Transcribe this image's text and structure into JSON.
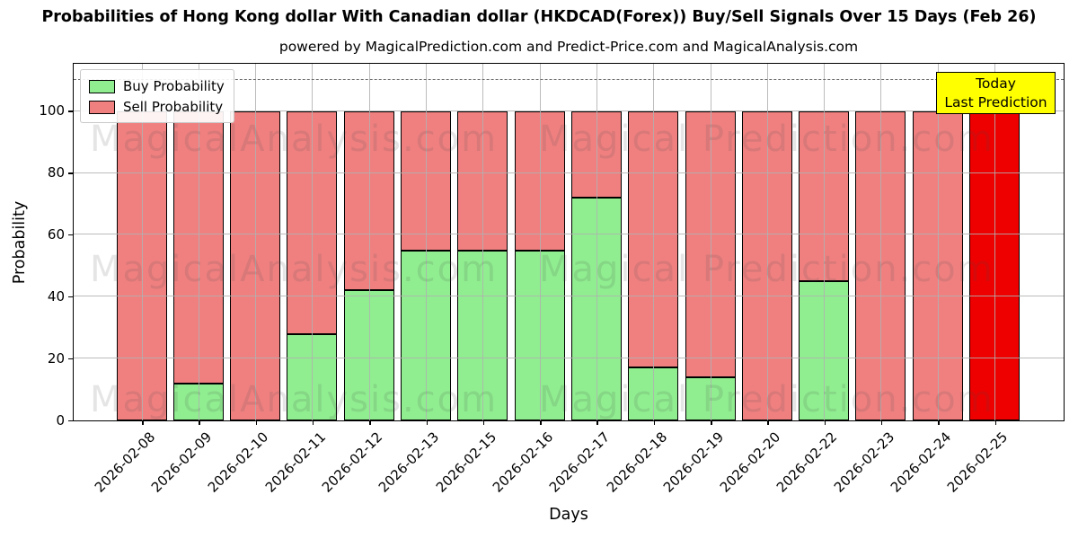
{
  "title": "Probabilities of Hong Kong dollar With Canadian dollar (HKDCAD(Forex)) Buy/Sell Signals Over 15 Days (Feb 26)",
  "subtitle": "powered by MagicalPrediction.com and Predict-Price.com and MagicalAnalysis.com",
  "legend": {
    "items": [
      {
        "label": "Buy Probability",
        "color": "#90EE90"
      },
      {
        "label": "Sell Probability",
        "color": "#F08080"
      }
    ]
  },
  "annotation_box": {
    "line1": "Today",
    "line2": "Last Prediction",
    "bg": "#FFFF00"
  },
  "watermarks": {
    "left": "MagicalAnalysis.com",
    "right": "Magical Prediction.com"
  },
  "chart_data": {
    "type": "bar",
    "stacked": true,
    "title": "Probabilities of Hong Kong dollar With Canadian dollar (HKDCAD(Forex)) Buy/Sell Signals Over 15 Days (Feb 26)",
    "subtitle": "powered by MagicalPrediction.com and Predict-Price.com and MagicalAnalysis.com",
    "xlabel": "Days",
    "ylabel": "Probability",
    "categories": [
      "2026-02-08",
      "2026-02-09",
      "2026-02-10",
      "2026-02-11",
      "2026-02-12",
      "2026-02-13",
      "2026-02-15",
      "2026-02-16",
      "2026-02-17",
      "2026-02-18",
      "2026-02-19",
      "2026-02-20",
      "2026-02-22",
      "2026-02-23",
      "2026-02-24",
      "2026-02-25"
    ],
    "series": [
      {
        "name": "Buy Probability",
        "color": "#90EE90",
        "values": [
          0,
          12,
          0,
          28,
          42,
          55,
          55,
          55,
          72,
          17,
          14,
          0,
          45,
          0,
          0,
          0
        ]
      },
      {
        "name": "Sell Probability",
        "color": "#F08080",
        "values": [
          100,
          88,
          100,
          72,
          58,
          45,
          45,
          45,
          28,
          83,
          86,
          100,
          55,
          100,
          100,
          0
        ]
      }
    ],
    "today_bar": {
      "date": "2026-02-25",
      "value": 100,
      "color": "#EE0000",
      "label": "Today Last Prediction"
    },
    "yticks": [
      0,
      20,
      40,
      60,
      80,
      100
    ],
    "ylim": [
      0,
      115
    ],
    "dashed_line_y": 110,
    "grid": true,
    "legend_position": "upper left",
    "bar_edge_color": "#000000",
    "grid_color": "#b0b0b0"
  }
}
